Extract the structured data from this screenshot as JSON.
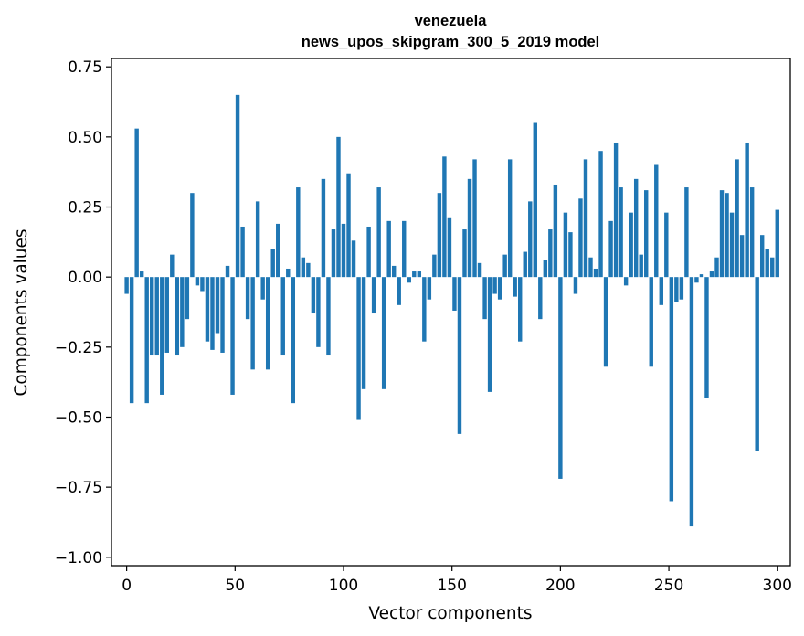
{
  "chart_data": {
    "type": "bar",
    "title_line1": "venezuela",
    "title_line2": "news_upos_skipgram_300_5_2019 model",
    "xlabel": "Vector components",
    "ylabel": "Components values",
    "xlim": [
      -7,
      306
    ],
    "ylim": [
      -1.03,
      0.78
    ],
    "xticks": [
      0,
      50,
      100,
      150,
      200,
      250,
      300
    ],
    "xtick_labels": [
      "0",
      "50",
      "100",
      "150",
      "200",
      "250",
      "300"
    ],
    "yticks": [
      0.75,
      0.5,
      0.25,
      0.0,
      -0.25,
      -0.5,
      -0.75,
      -1.0
    ],
    "ytick_labels": [
      "0.75",
      "0.50",
      "0.25",
      "0.00",
      "−0.25",
      "−0.50",
      "−0.75",
      "−1.00"
    ],
    "bar_color": "#1f77b4",
    "series": [
      {
        "name": "venezuela",
        "values": [
          -0.06,
          -0.45,
          0.53,
          0.02,
          -0.45,
          -0.28,
          -0.28,
          -0.42,
          -0.27,
          0.08,
          -0.28,
          -0.25,
          -0.15,
          0.3,
          -0.03,
          -0.05,
          -0.23,
          -0.26,
          -0.2,
          -0.27,
          0.04,
          -0.42,
          0.65,
          0.18,
          -0.15,
          -0.33,
          0.27,
          -0.08,
          -0.33,
          0.1,
          0.19,
          -0.28,
          0.03,
          -0.45,
          0.32,
          0.07,
          0.05,
          -0.13,
          -0.25,
          0.35,
          -0.28,
          0.17,
          0.5,
          0.19,
          0.37,
          0.13,
          -0.51,
          -0.4,
          0.18,
          -0.13,
          0.32,
          -0.4,
          0.2,
          0.04,
          -0.1,
          0.2,
          -0.02,
          0.02,
          0.02,
          -0.23,
          -0.08,
          0.08,
          0.3,
          0.43,
          0.21,
          -0.12,
          -0.56,
          0.17,
          0.35,
          0.42,
          0.05,
          -0.15,
          -0.41,
          -0.06,
          -0.08,
          0.08,
          0.42,
          -0.07,
          -0.23,
          0.09,
          0.27,
          0.55,
          -0.15,
          0.06,
          0.17,
          0.33,
          -0.72,
          0.23,
          0.16,
          -0.06,
          0.28,
          0.42,
          0.07,
          0.03,
          0.45,
          -0.32,
          0.2,
          0.48,
          0.32,
          -0.03,
          0.23,
          0.35,
          0.08,
          0.31,
          -0.32,
          0.4,
          -0.1,
          0.23,
          -0.8,
          -0.09,
          -0.08,
          0.32,
          -0.89,
          -0.02,
          0.01,
          -0.43,
          0.02,
          0.07,
          0.31,
          0.3,
          0.23,
          0.42,
          0.15,
          0.48,
          0.32,
          -0.62,
          0.15,
          0.1,
          0.07,
          0.24
        ]
      }
    ]
  }
}
